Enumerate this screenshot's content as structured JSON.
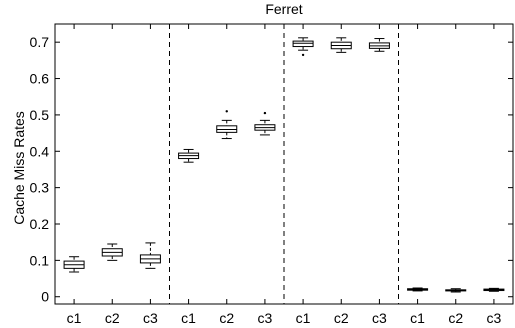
{
  "chart_data": {
    "type": "box",
    "title": "Ferret",
    "ylabel": "Cache Miss Rates",
    "xlabel": "",
    "ylim": [
      -0.02,
      0.75
    ],
    "yticks": [
      0,
      0.1,
      0.2,
      0.3,
      0.4,
      0.5,
      0.6,
      0.7
    ],
    "ytick_labels": [
      "0",
      "0.1",
      "0.2",
      "0.3",
      "0.4",
      "0.5",
      "0.6",
      "0.7"
    ],
    "categories": [
      "c1",
      "c2",
      "c3",
      "c1",
      "c2",
      "c3",
      "c1",
      "c2",
      "c3",
      "c1",
      "c2",
      "c3"
    ],
    "grid": false,
    "group_separators": "dashed vertical lines between groups of three",
    "groups": [
      {
        "boxes": [
          {
            "category": "c1",
            "min": 0.068,
            "q1": 0.078,
            "median": 0.088,
            "q3": 0.098,
            "max": 0.11,
            "outliers": []
          },
          {
            "category": "c2",
            "min": 0.1,
            "q1": 0.112,
            "median": 0.122,
            "q3": 0.132,
            "max": 0.145,
            "outliers": []
          },
          {
            "category": "c3",
            "min": 0.078,
            "q1": 0.093,
            "median": 0.104,
            "q3": 0.115,
            "max": 0.148,
            "outliers": []
          }
        ]
      },
      {
        "boxes": [
          {
            "category": "c1",
            "min": 0.37,
            "q1": 0.38,
            "median": 0.388,
            "q3": 0.395,
            "max": 0.405,
            "outliers": []
          },
          {
            "category": "c2",
            "min": 0.435,
            "q1": 0.452,
            "median": 0.46,
            "q3": 0.47,
            "max": 0.485,
            "outliers": [
              0.51
            ]
          },
          {
            "category": "c3",
            "min": 0.445,
            "q1": 0.458,
            "median": 0.465,
            "q3": 0.473,
            "max": 0.485,
            "outliers": [
              0.505
            ]
          }
        ]
      },
      {
        "boxes": [
          {
            "category": "c1",
            "min": 0.678,
            "q1": 0.688,
            "median": 0.697,
            "q3": 0.703,
            "max": 0.712,
            "outliers": [
              0.665
            ]
          },
          {
            "category": "c2",
            "min": 0.672,
            "q1": 0.682,
            "median": 0.691,
            "q3": 0.7,
            "max": 0.712,
            "outliers": []
          },
          {
            "category": "c3",
            "min": 0.675,
            "q1": 0.683,
            "median": 0.69,
            "q3": 0.698,
            "max": 0.71,
            "outliers": []
          }
        ]
      },
      {
        "boxes": [
          {
            "category": "c1",
            "min": 0.016,
            "q1": 0.018,
            "median": 0.02,
            "q3": 0.022,
            "max": 0.024,
            "outliers": []
          },
          {
            "category": "c2",
            "min": 0.013,
            "q1": 0.016,
            "median": 0.017,
            "q3": 0.019,
            "max": 0.022,
            "outliers": []
          },
          {
            "category": "c3",
            "min": 0.015,
            "q1": 0.017,
            "median": 0.019,
            "q3": 0.021,
            "max": 0.023,
            "outliers": []
          }
        ]
      }
    ]
  }
}
